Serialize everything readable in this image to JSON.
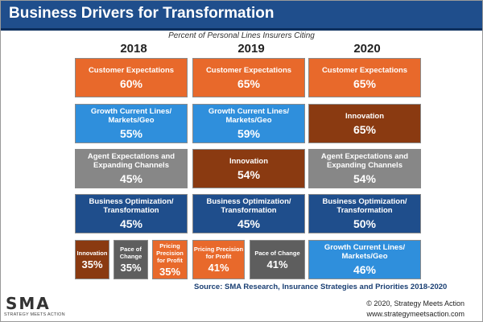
{
  "header": {
    "title": "Business Drivers for Transformation"
  },
  "subtitle": "Percent of Personal Lines Insurers Citing",
  "years": [
    "2018",
    "2019",
    "2020"
  ],
  "columns": [
    {
      "year": "2018",
      "tiles": [
        {
          "label": "Customer Expectations",
          "value": "60%",
          "color": "#e8692b"
        },
        {
          "label": "Growth Current Lines/ Markets/Geo",
          "value": "55%",
          "color": "#2f8fdc"
        },
        {
          "label": "Agent Expectations and Expanding Channels",
          "value": "45%",
          "color": "#878787"
        },
        {
          "label": "Business Optimization/ Transformation",
          "value": "45%",
          "color": "#1f4e8c"
        }
      ],
      "small_tiles": [
        {
          "label": "Innovation",
          "value": "35%",
          "color": "#8a3a11"
        },
        {
          "label": "Pace of Change",
          "value": "35%",
          "color": "#5e5e5e"
        },
        {
          "label": "Pricing Precision for Profit",
          "value": "35%",
          "color": "#e8692b"
        }
      ]
    },
    {
      "year": "2019",
      "tiles": [
        {
          "label": "Customer Expectations",
          "value": "65%",
          "color": "#e8692b"
        },
        {
          "label": "Growth Current Lines/ Markets/Geo",
          "value": "59%",
          "color": "#2f8fdc"
        },
        {
          "label": "Innovation",
          "value": "54%",
          "color": "#8a3a11"
        },
        {
          "label": "Business Optimization/ Transformation",
          "value": "45%",
          "color": "#1f4e8c"
        }
      ],
      "small_tiles": [
        {
          "label": "Pricing Precision for Profit",
          "value": "41%",
          "color": "#e8692b"
        },
        {
          "label": "Pace of Change",
          "value": "41%",
          "color": "#5e5e5e"
        }
      ]
    },
    {
      "year": "2020",
      "tiles": [
        {
          "label": "Customer Expectations",
          "value": "65%",
          "color": "#e8692b"
        },
        {
          "label": "Innovation",
          "value": "65%",
          "color": "#8a3a11"
        },
        {
          "label": "Agent Expectations and Expanding Channels",
          "value": "54%",
          "color": "#878787"
        },
        {
          "label": "Business Optimization/ Transformation",
          "value": "50%",
          "color": "#1f4e8c"
        },
        {
          "label": "Growth Current Lines/ Markets/Geo",
          "value": "46%",
          "color": "#2f8fdc"
        }
      ]
    }
  ],
  "source": "Source: SMA Research, Insurance Strategies and Priorities 2018-2020",
  "logo": {
    "mark": "SMA",
    "tagline": "STRATEGY MEETS ACTION"
  },
  "copyright": "© 2020, Strategy Meets Action",
  "website": "www.strategymeetsaction.com"
}
